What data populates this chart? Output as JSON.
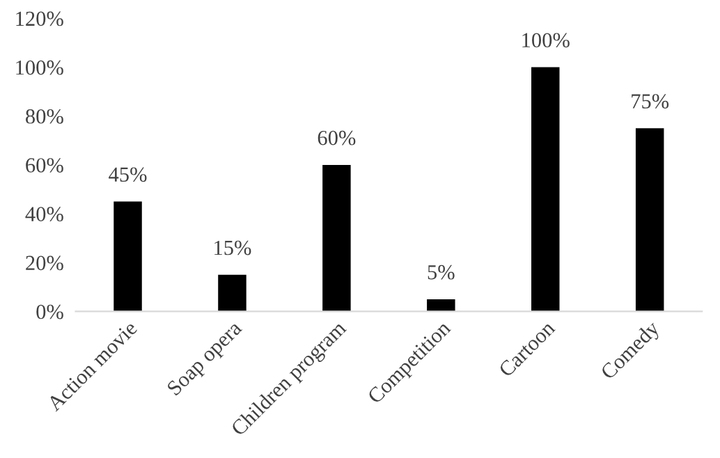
{
  "chart_data": {
    "type": "bar",
    "categories": [
      "Action movie",
      "Soap opera",
      "Children program",
      "Competition",
      "Cartoon",
      "Comedy"
    ],
    "values": [
      45,
      15,
      60,
      5,
      100,
      75
    ],
    "value_labels": [
      "45%",
      "15%",
      "60%",
      "5%",
      "100%",
      "75%"
    ],
    "color": "#000000",
    "ylim": [
      0,
      120
    ],
    "yticks": [
      {
        "value": 0,
        "label": "0%"
      },
      {
        "value": 20,
        "label": "20%"
      },
      {
        "value": 40,
        "label": "40%"
      },
      {
        "value": 60,
        "label": "60%"
      },
      {
        "value": 80,
        "label": "80%"
      },
      {
        "value": 100,
        "label": "100%"
      },
      {
        "value": 120,
        "label": "120%"
      }
    ],
    "grid": false,
    "legend": false
  }
}
